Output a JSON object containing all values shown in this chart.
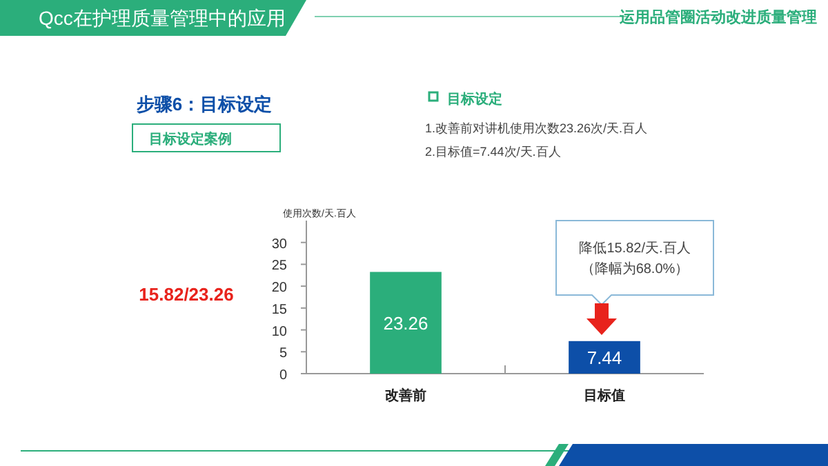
{
  "chart_data": {
    "type": "bar",
    "title": "Qcc在护理质量管理中的应用",
    "subtitle": "运用品管圈活动改进质量管理",
    "ylabel": "使用次数/天.百人",
    "categories": [
      "改善前",
      "目标值"
    ],
    "values": [
      23.26,
      7.44
    ],
    "colors": [
      "#2bae7b",
      "#0d4fa8"
    ],
    "ylim": [
      0,
      35
    ],
    "yticks": [
      0,
      5,
      10,
      15,
      20,
      25,
      30
    ],
    "data_labels": true,
    "annotations": [
      "步骤6：目标设定",
      "目标设定案例",
      "目标设定",
      "1.改善前对讲机使用次数23.26次/天.百人",
      "2.目标值=7.44次/天.百人",
      "15.82/23.26",
      "降低15.82/天.百人",
      "（降幅为68.0%）"
    ]
  }
}
